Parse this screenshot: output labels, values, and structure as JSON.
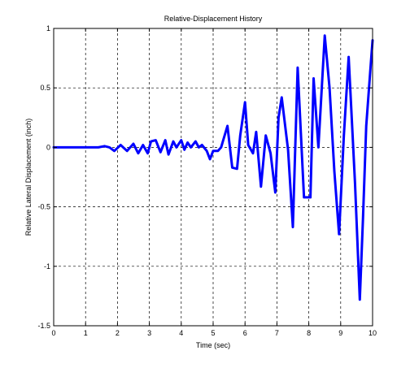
{
  "chart_data": {
    "type": "line",
    "title": "Relative-Displacement History",
    "xlabel": "Time (sec)",
    "ylabel": "Relative Lateral Displacement (inch)",
    "xlim": [
      0,
      10
    ],
    "ylim": [
      -1.5,
      1
    ],
    "x_ticks": [
      0,
      1,
      2,
      3,
      4,
      5,
      6,
      7,
      8,
      9,
      10
    ],
    "x_tick_labels": [
      "0",
      "1",
      "2",
      "3",
      "4",
      "5",
      "6",
      "7",
      "8",
      "9",
      "10"
    ],
    "y_ticks": [
      -1.5,
      -1,
      -0.5,
      0,
      0.5,
      1
    ],
    "y_tick_labels": [
      "-1.5",
      "-1",
      "-0.5",
      "0",
      "0.5",
      "1"
    ],
    "grid": true,
    "grid_style": "dashed",
    "legend": "none",
    "series": [
      {
        "color": "#0000ff",
        "x": [
          0,
          0.5,
          1.0,
          1.4,
          1.6,
          1.75,
          1.9,
          2.1,
          2.3,
          2.5,
          2.65,
          2.8,
          2.95,
          3.05,
          3.2,
          3.35,
          3.5,
          3.6,
          3.75,
          3.85,
          4.0,
          4.1,
          4.2,
          4.3,
          4.45,
          4.55,
          4.65,
          4.8,
          4.9,
          5.0,
          5.15,
          5.25,
          5.45,
          5.6,
          5.75,
          5.85,
          6.0,
          6.1,
          6.25,
          6.35,
          6.5,
          6.65,
          6.8,
          6.95,
          7.05,
          7.15,
          7.35,
          7.5,
          7.65,
          7.85,
          8.05,
          8.15,
          8.3,
          8.5,
          8.65,
          8.8,
          8.95,
          9.1,
          9.25,
          9.45,
          9.6,
          9.7,
          9.8,
          9.95,
          10.0
        ],
        "values": [
          0.0,
          0.0,
          0.0,
          0.0,
          0.01,
          0.0,
          -0.03,
          0.02,
          -0.03,
          0.03,
          -0.05,
          0.02,
          -0.05,
          0.05,
          0.06,
          -0.04,
          0.06,
          -0.06,
          0.05,
          0.0,
          0.06,
          -0.02,
          0.04,
          0.0,
          0.05,
          0.0,
          0.02,
          -0.03,
          -0.1,
          -0.03,
          -0.03,
          0.0,
          0.18,
          -0.17,
          -0.18,
          0.1,
          0.38,
          0.02,
          -0.05,
          0.13,
          -0.33,
          0.1,
          -0.05,
          -0.38,
          0.25,
          0.42,
          -0.02,
          -0.67,
          0.67,
          -0.42,
          -0.42,
          0.58,
          0.0,
          0.94,
          0.5,
          -0.2,
          -0.73,
          0.1,
          0.76,
          -0.3,
          -1.28,
          -0.6,
          0.18,
          0.72,
          0.9
        ]
      }
    ]
  }
}
